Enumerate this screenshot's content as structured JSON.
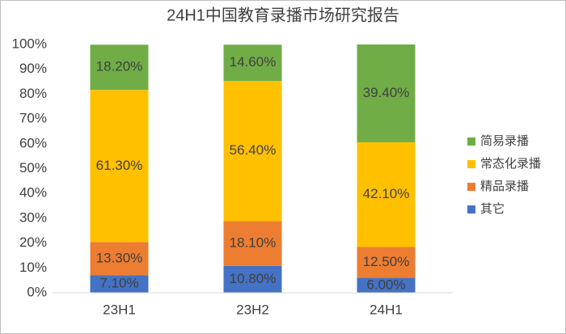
{
  "chart_data": {
    "type": "stacked_bar",
    "title": "24H1中国教育录播市场研究报告",
    "categories": [
      "23H1",
      "23H2",
      "24H1"
    ],
    "series": [
      {
        "name": "其它",
        "color": "#4472c4",
        "values": [
          7.1,
          10.8,
          6.0
        ],
        "value_labels": [
          "7.10%",
          "10.80%",
          "6.00%"
        ]
      },
      {
        "name": "精品录播",
        "color": "#ed7d31",
        "values": [
          13.3,
          18.1,
          12.5
        ],
        "value_labels": [
          "13.30%",
          "18.10%",
          "12.50%"
        ]
      },
      {
        "name": "常态化录播",
        "color": "#ffc000",
        "values": [
          61.3,
          56.4,
          42.1
        ],
        "value_labels": [
          "61.30%",
          "56.40%",
          "42.10%"
        ]
      },
      {
        "name": "简易录播",
        "color": "#70ad47",
        "values": [
          18.2,
          14.6,
          39.4
        ],
        "value_labels": [
          "18.20%",
          "14.60%",
          "39.40%"
        ]
      }
    ],
    "ylim": [
      0,
      100
    ],
    "yticks": [
      {
        "value": 0,
        "label": "0%"
      },
      {
        "value": 10,
        "label": "10%"
      },
      {
        "value": 20,
        "label": "20%"
      },
      {
        "value": 30,
        "label": "30%"
      },
      {
        "value": 40,
        "label": "40%"
      },
      {
        "value": 50,
        "label": "50%"
      },
      {
        "value": 60,
        "label": "60%"
      },
      {
        "value": 70,
        "label": "70%"
      },
      {
        "value": 80,
        "label": "80%"
      },
      {
        "value": 90,
        "label": "90%"
      },
      {
        "value": 100,
        "label": "100%"
      }
    ],
    "grid": false,
    "legend": "right"
  }
}
